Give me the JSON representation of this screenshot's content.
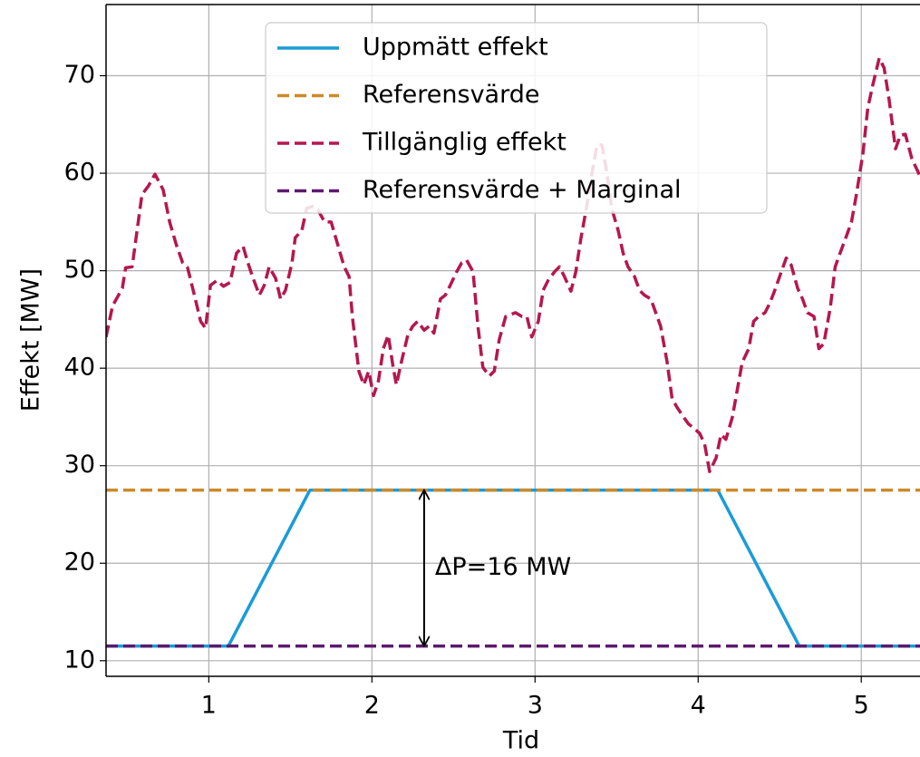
{
  "chart_data": {
    "type": "line",
    "xlabel": "Tid",
    "ylabel": "Effekt [MW]",
    "xlim": [
      0.37,
      5.36
    ],
    "ylim": [
      8.4,
      77.3
    ],
    "xticks": [
      1,
      2,
      3,
      4,
      5
    ],
    "yticks": [
      10,
      20,
      30,
      40,
      50,
      60,
      70
    ],
    "grid": true,
    "legend": "upper center",
    "series": [
      {
        "name": "Uppmätt effekt",
        "color": "#1a9bd7",
        "dashed": false,
        "x": [
          0.37,
          1.12,
          1.62,
          4.12,
          4.62,
          5.36
        ],
        "values": [
          11.5,
          11.5,
          27.5,
          27.5,
          11.5,
          11.5
        ]
      },
      {
        "name": "Referensvärde",
        "color": "#cc8a2a",
        "dashed": true,
        "x": [
          0.37,
          5.36
        ],
        "values": [
          27.5,
          27.5
        ]
      },
      {
        "name": "Tillgänglig effekt",
        "color": "#b5174f",
        "dashed": true,
        "x": [
          0.37,
          0.41,
          0.47,
          0.49,
          0.53,
          0.59,
          0.63,
          0.67,
          0.72,
          0.76,
          0.8,
          0.84,
          0.87,
          0.91,
          0.95,
          0.98,
          1.01,
          1.05,
          1.09,
          1.13,
          1.17,
          1.21,
          1.24,
          1.27,
          1.31,
          1.34,
          1.37,
          1.41,
          1.44,
          1.47,
          1.51,
          1.53,
          1.57,
          1.6,
          1.64,
          1.67,
          1.71,
          1.75,
          1.79,
          1.83,
          1.86,
          1.88,
          1.92,
          1.95,
          1.98,
          2.01,
          2.04,
          2.07,
          2.1,
          2.13,
          2.15,
          2.18,
          2.22,
          2.25,
          2.28,
          2.32,
          2.35,
          2.38,
          2.42,
          2.45,
          2.48,
          2.52,
          2.55,
          2.58,
          2.62,
          2.65,
          2.68,
          2.72,
          2.75,
          2.78,
          2.82,
          2.85,
          2.88,
          2.92,
          2.95,
          2.98,
          3.02,
          3.05,
          3.08,
          3.12,
          3.15,
          3.18,
          3.22,
          3.25,
          3.28,
          3.32,
          3.35,
          3.38,
          3.41,
          3.44,
          3.47,
          3.51,
          3.54,
          3.57,
          3.61,
          3.64,
          3.67,
          3.71,
          3.74,
          3.77,
          3.81,
          3.84,
          3.87,
          3.91,
          3.94,
          3.97,
          4.01,
          4.04,
          4.07,
          4.11,
          4.14,
          4.17,
          4.21,
          4.24,
          4.27,
          4.31,
          4.34,
          4.37,
          4.41,
          4.44,
          4.47,
          4.51,
          4.54,
          4.57,
          4.61,
          4.64,
          4.67,
          4.71,
          4.74,
          4.77,
          4.81,
          4.84,
          4.87,
          4.91,
          4.94,
          4.97,
          5.01,
          5.04,
          5.07,
          5.11,
          5.14,
          5.17,
          5.21,
          5.24,
          5.27,
          5.31,
          5.36
        ],
        "values": [
          43.2,
          46.4,
          48.2,
          50.3,
          50.4,
          57.8,
          58.7,
          59.9,
          58.3,
          55.0,
          52.7,
          50.8,
          50.3,
          47.6,
          44.8,
          44.1,
          48.5,
          49.0,
          48.4,
          48.8,
          51.8,
          52.5,
          50.8,
          49.3,
          47.5,
          48.5,
          50.4,
          49.2,
          47.1,
          48.0,
          50.8,
          53.4,
          54.1,
          56.4,
          56.6,
          56.2,
          55.0,
          55.0,
          52.7,
          50.4,
          49.4,
          45.3,
          39.7,
          38.3,
          39.7,
          37.2,
          38.7,
          42.0,
          43.4,
          40.1,
          38.3,
          40.6,
          43.4,
          44.3,
          44.8,
          43.9,
          44.3,
          43.6,
          47.1,
          47.5,
          48.5,
          49.9,
          50.8,
          51.1,
          49.9,
          44.3,
          40.1,
          39.2,
          39.7,
          42.9,
          45.3,
          45.5,
          45.7,
          45.3,
          45.3,
          43.2,
          44.8,
          48.0,
          49.0,
          49.9,
          50.4,
          49.4,
          47.9,
          49.9,
          53.2,
          56.9,
          60.1,
          62.9,
          62.9,
          60.1,
          56.4,
          54.1,
          51.8,
          50.4,
          49.4,
          48.0,
          47.5,
          47.1,
          45.7,
          44.3,
          40.6,
          36.9,
          36.0,
          35.0,
          34.3,
          33.9,
          33.3,
          32.2,
          29.4,
          30.8,
          33.2,
          32.7,
          35.0,
          37.8,
          40.6,
          42.0,
          44.8,
          45.3,
          45.7,
          46.7,
          48.0,
          49.9,
          51.3,
          50.6,
          48.2,
          47.1,
          45.7,
          45.3,
          42.0,
          42.5,
          46.2,
          50.4,
          51.8,
          53.6,
          55.0,
          57.8,
          62.0,
          66.7,
          69.0,
          71.8,
          70.8,
          67.6,
          62.5,
          63.9,
          64.0,
          61.5,
          59.7
        ]
      },
      {
        "name": "Referensvärde + Marginal",
        "color": "#5c1a6e",
        "dashed": true,
        "x": [
          0.37,
          5.36
        ],
        "values": [
          11.5,
          11.5
        ]
      }
    ],
    "annotation": {
      "text": "ΔP=16 MW",
      "x": 2.32,
      "y": [
        11.5,
        27.5
      ]
    }
  }
}
